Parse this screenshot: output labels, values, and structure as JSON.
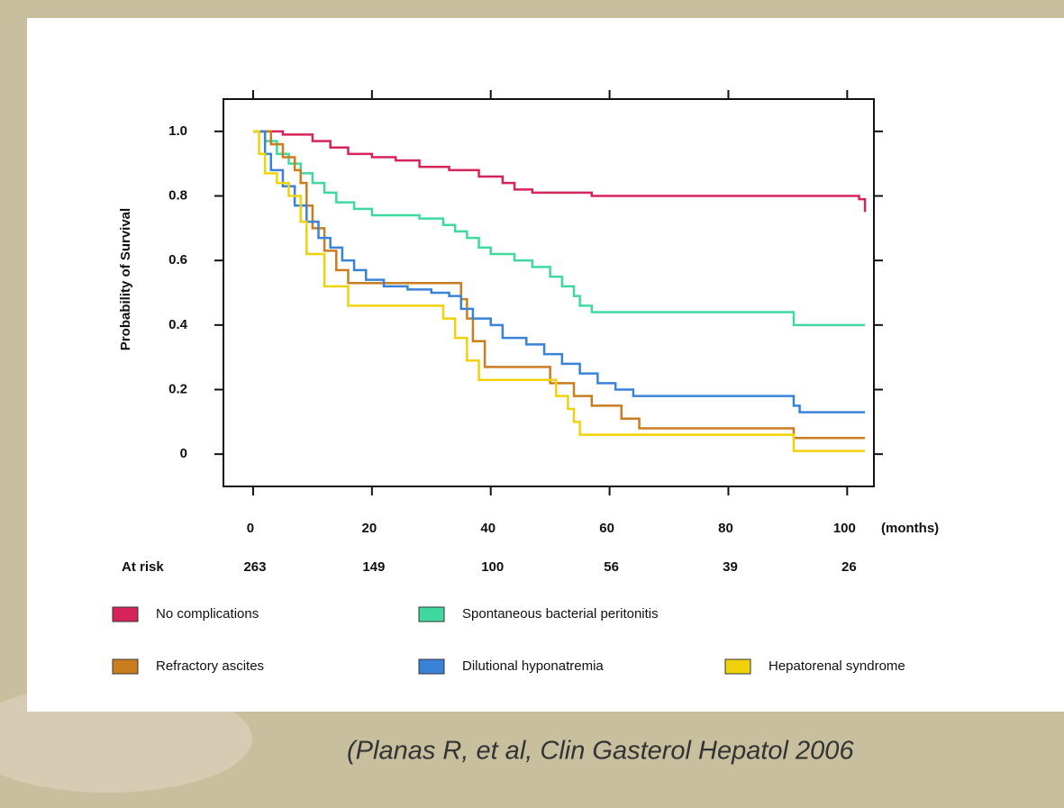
{
  "chart_data": {
    "type": "step",
    "ylabel": "Probability of Survival",
    "xlabel": "(months)",
    "xlim": [
      -5,
      104.5
    ],
    "ylim": [
      -0.1,
      1.1
    ],
    "xticks": [
      0,
      20,
      40,
      60,
      80,
      100
    ],
    "yticks": [
      {
        "value": 1,
        "label": "1.0"
      },
      0.8,
      0.6,
      0.4,
      0.2,
      0
    ],
    "at_risk": {
      "label": "At risk",
      "values": [
        263,
        149,
        100,
        56,
        39,
        26
      ]
    },
    "series": [
      {
        "name": "No complications",
        "color": "#d6245a",
        "x": [
          0,
          5,
          10,
          13,
          16,
          20,
          24,
          28,
          33,
          38,
          42,
          44,
          47,
          57,
          102,
          103
        ],
        "values": [
          1.0,
          0.99,
          0.97,
          0.95,
          0.93,
          0.92,
          0.91,
          0.89,
          0.88,
          0.86,
          0.84,
          0.82,
          0.81,
          0.8,
          0.79,
          0.75
        ]
      },
      {
        "name": "Spontaneous bacterial peritonitis",
        "color": "#3fd9a0",
        "x": [
          0,
          2,
          4,
          6,
          8,
          10,
          12,
          14,
          17,
          20,
          28,
          32,
          34,
          36,
          38,
          40,
          44,
          47,
          50,
          52,
          54,
          55,
          57,
          91,
          103
        ],
        "values": [
          1.0,
          0.97,
          0.93,
          0.9,
          0.87,
          0.84,
          0.81,
          0.78,
          0.76,
          0.74,
          0.73,
          0.71,
          0.69,
          0.67,
          0.64,
          0.62,
          0.6,
          0.58,
          0.55,
          0.52,
          0.49,
          0.46,
          0.44,
          0.4,
          0.4
        ]
      },
      {
        "name": "Refractory ascites",
        "color": "#c97d1e",
        "x": [
          0,
          3,
          5,
          7,
          8,
          9,
          10,
          12,
          14,
          16,
          35,
          36,
          37,
          39,
          50,
          54,
          57,
          62,
          65,
          91,
          103
        ],
        "values": [
          1.0,
          0.96,
          0.92,
          0.88,
          0.84,
          0.77,
          0.7,
          0.63,
          0.57,
          0.53,
          0.48,
          0.42,
          0.35,
          0.27,
          0.22,
          0.18,
          0.15,
          0.11,
          0.08,
          0.05,
          0.05
        ]
      },
      {
        "name": "Dilutional hyponatremia",
        "color": "#3a82d8",
        "x": [
          0,
          2,
          3,
          5,
          7,
          9,
          11,
          13,
          15,
          17,
          19,
          22,
          26,
          30,
          33,
          35,
          37,
          40,
          42,
          46,
          49,
          52,
          55,
          58,
          61,
          64,
          91,
          92,
          103
        ],
        "values": [
          1.0,
          0.93,
          0.88,
          0.83,
          0.77,
          0.72,
          0.67,
          0.64,
          0.6,
          0.57,
          0.54,
          0.52,
          0.51,
          0.5,
          0.49,
          0.45,
          0.42,
          0.4,
          0.36,
          0.34,
          0.31,
          0.28,
          0.25,
          0.22,
          0.2,
          0.18,
          0.15,
          0.13,
          0.13
        ]
      },
      {
        "name": "Hepatorenal syndrome",
        "color": "#f0d20a",
        "x": [
          0,
          1,
          2,
          4,
          6,
          8,
          9,
          12,
          16,
          32,
          34,
          36,
          38,
          51,
          53,
          54,
          55,
          91,
          103
        ],
        "values": [
          1.0,
          0.93,
          0.87,
          0.84,
          0.8,
          0.72,
          0.62,
          0.52,
          0.46,
          0.42,
          0.36,
          0.29,
          0.23,
          0.18,
          0.14,
          0.1,
          0.06,
          0.01,
          0.01
        ]
      }
    ],
    "citation": "(Planas R, et al, Clin Gasterol Hepatol 2006"
  }
}
